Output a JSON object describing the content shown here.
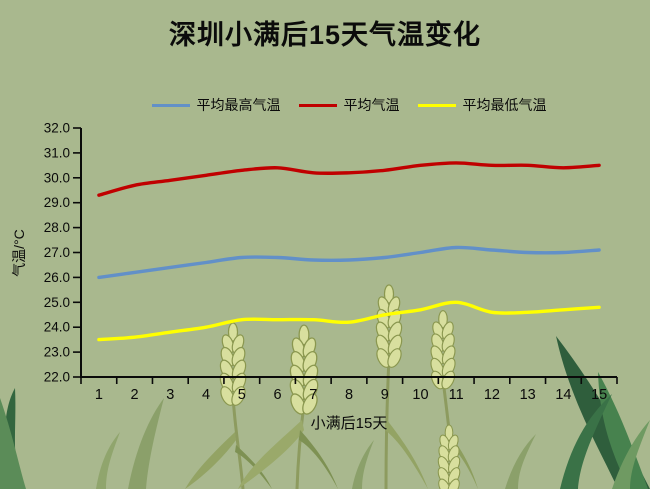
{
  "chart_data": {
    "type": "line",
    "title": "深圳小满后15天气温变化",
    "xlabel": "小满后15天",
    "ylabel": "气温/°C",
    "x": [
      1,
      2,
      3,
      4,
      5,
      6,
      7,
      8,
      9,
      10,
      11,
      12,
      13,
      14,
      15
    ],
    "ylim": [
      22.0,
      32.0
    ],
    "yticks": [
      32,
      31,
      30,
      29,
      28,
      27,
      26,
      25,
      24,
      23,
      22
    ],
    "grid": false,
    "legend_position": "top",
    "series": [
      {
        "id": "avg-high",
        "name": "平均最高气温",
        "color": "#6290c8",
        "values": [
          26.0,
          26.2,
          26.4,
          26.6,
          26.8,
          26.8,
          26.7,
          26.7,
          26.8,
          27.0,
          27.2,
          27.1,
          27.0,
          27.0,
          27.1
        ]
      },
      {
        "id": "avg",
        "name": "平均气温",
        "color": "#c00000",
        "values": [
          29.3,
          29.7,
          29.9,
          30.1,
          30.3,
          30.4,
          30.2,
          30.2,
          30.3,
          30.5,
          30.6,
          30.5,
          30.5,
          30.4,
          30.5
        ]
      },
      {
        "id": "avg-low",
        "name": "平均最低气温",
        "color": "#ffff00",
        "values": [
          23.5,
          23.6,
          23.8,
          24.0,
          24.3,
          24.3,
          24.3,
          24.2,
          24.5,
          24.7,
          25.0,
          24.6,
          24.6,
          24.7,
          24.8
        ]
      }
    ]
  },
  "colors": {
    "background": "#a9b88e",
    "axis": "#0a0a0a"
  }
}
